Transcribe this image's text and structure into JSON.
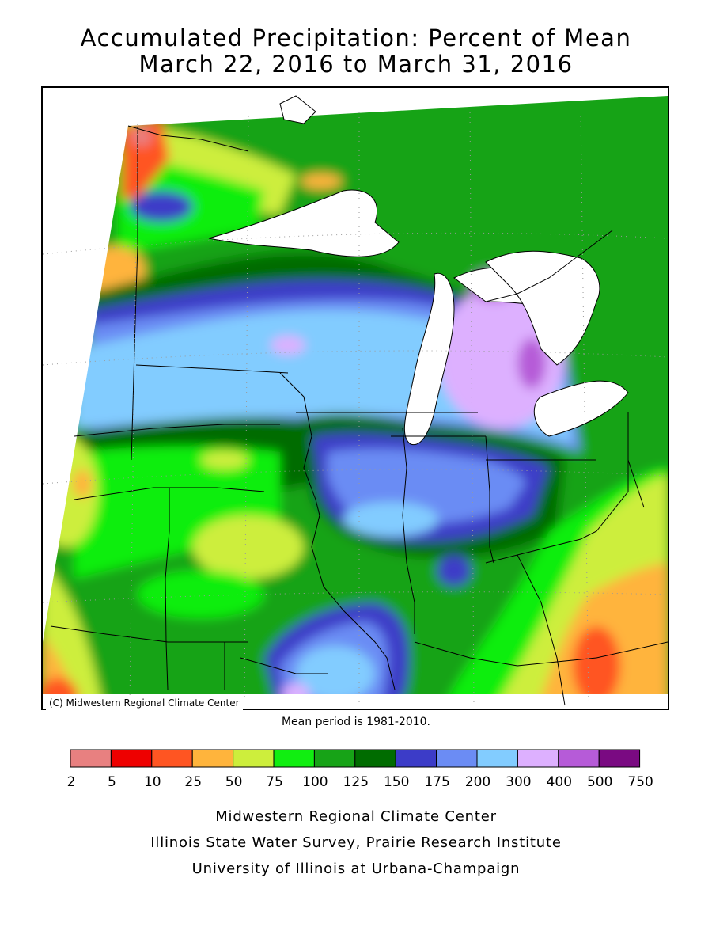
{
  "title_line1": "Accumulated Precipitation: Percent of Mean",
  "title_line2": "March 22, 2016 to March 31, 2016",
  "map": {
    "copyright": "(C) Midwestern Regional Climate Center",
    "mean_period": "Mean period is 1981-2010."
  },
  "legend": {
    "colors": [
      "#e88080",
      "#ee0000",
      "#ff5522",
      "#ffb43c",
      "#cdee3c",
      "#11ee11",
      "#17a317",
      "#006c00",
      "#3c3cc8",
      "#6b8cf4",
      "#82ccff",
      "#ddb0ff",
      "#b65bd8",
      "#7a0a82"
    ],
    "ticks": [
      "2",
      "5",
      "10",
      "25",
      "50",
      "75",
      "100",
      "125",
      "150",
      "175",
      "200",
      "300",
      "400",
      "500",
      "750"
    ]
  },
  "credits": {
    "line1": "Midwestern Regional Climate Center",
    "line2": "Illinois State Water Survey, Prairie Research Institute",
    "line3": "University of Illinois at Urbana-Champaign"
  }
}
